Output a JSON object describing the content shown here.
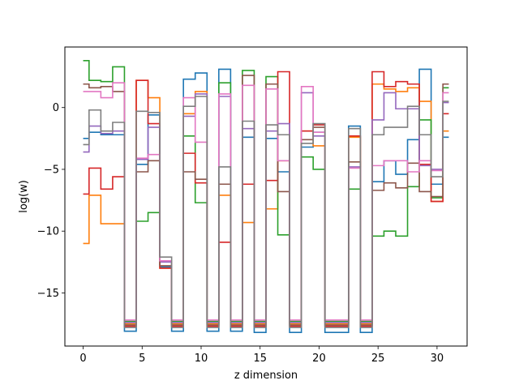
{
  "chart_data": {
    "type": "line",
    "drawstyle": "steps-mid",
    "title": "",
    "xlabel": "z dimension",
    "ylabel": "log(w)",
    "xlim": [
      -1.55,
      32.55
    ],
    "ylim": [
      -19.3,
      4.9
    ],
    "xticks": [
      0,
      5,
      10,
      15,
      20,
      25,
      30
    ],
    "yticks": [
      -15,
      -10,
      -5,
      0
    ],
    "ytick_labels": [
      "−15",
      "−10",
      "−5",
      "0"
    ],
    "grid": false,
    "legend": null,
    "x": [
      0,
      1,
      2,
      3,
      4,
      5,
      6,
      7,
      8,
      9,
      10,
      11,
      12,
      13,
      14,
      15,
      16,
      17,
      18,
      19,
      20,
      21,
      22,
      23,
      24,
      25,
      26,
      27,
      28,
      29,
      30,
      31
    ],
    "series": [
      {
        "color": "#1f77b4",
        "values": [
          -2.5,
          -2.0,
          -2.2,
          -2.2,
          -18.1,
          -4.6,
          -0.6,
          -12.9,
          -18.1,
          2.3,
          2.8,
          -18.1,
          3.1,
          -18.1,
          -2.4,
          -18.2,
          -2.5,
          -5.2,
          -18.2,
          -3.2,
          -2.0,
          -18.2,
          -18.2,
          -1.5,
          -18.2,
          -6.0,
          -4.3,
          -5.4,
          -2.6,
          3.1,
          -6.2,
          -2.4
        ]
      },
      {
        "color": "#ff7f0e",
        "values": [
          -11.0,
          -7.1,
          -9.4,
          -9.4,
          -17.5,
          2.2,
          0.8,
          -13.0,
          -17.5,
          -0.5,
          1.3,
          -17.5,
          -7.1,
          -17.5,
          -9.3,
          -17.5,
          -8.2,
          -4.3,
          -17.5,
          -1.9,
          -3.1,
          -17.5,
          -17.5,
          -2.4,
          -17.5,
          1.9,
          1.5,
          1.3,
          1.6,
          0.5,
          -7.6,
          -1.9
        ]
      },
      {
        "color": "#2ca02c",
        "values": [
          3.8,
          2.2,
          2.1,
          3.3,
          -17.3,
          -9.2,
          -8.5,
          -12.4,
          -17.3,
          -2.3,
          -7.7,
          -17.3,
          2.0,
          -17.3,
          3.0,
          -17.3,
          2.5,
          -10.3,
          -17.3,
          -4.0,
          -5.0,
          -17.3,
          -17.3,
          -6.6,
          -17.3,
          -10.4,
          -10.0,
          -10.4,
          -6.4,
          -1.0,
          -7.3,
          1.6
        ]
      },
      {
        "color": "#d62728",
        "values": [
          -7.0,
          -4.9,
          -6.6,
          -5.6,
          -17.7,
          2.2,
          -1.3,
          -13.0,
          -17.7,
          -3.7,
          -6.1,
          -17.7,
          -10.9,
          -17.7,
          -6.2,
          -17.7,
          -5.9,
          2.9,
          -17.7,
          -1.9,
          -1.4,
          -17.7,
          -17.7,
          -2.3,
          -17.7,
          2.9,
          1.7,
          2.1,
          1.9,
          -4.6,
          -7.6,
          -0.5
        ]
      },
      {
        "color": "#9467bd",
        "values": [
          -3.6,
          -1.5,
          -2.1,
          -1.9,
          -17.4,
          -4.2,
          -1.6,
          -12.5,
          -17.4,
          -0.7,
          1.1,
          -17.4,
          0.9,
          -17.4,
          -1.7,
          -17.4,
          -1.9,
          -1.3,
          -17.4,
          1.2,
          -2.3,
          -17.4,
          -17.4,
          -4.8,
          -17.4,
          -1.0,
          1.2,
          -0.1,
          -0.1,
          -4.7,
          -5.0,
          0.4
        ]
      },
      {
        "color": "#8c564b",
        "values": [
          1.9,
          1.6,
          1.7,
          1.3,
          -17.6,
          -5.2,
          -4.3,
          -12.8,
          -17.6,
          -5.2,
          -5.8,
          -17.6,
          -6.2,
          -17.6,
          2.6,
          -17.6,
          1.9,
          -6.8,
          -17.6,
          -2.6,
          -1.6,
          -17.6,
          -17.6,
          -4.4,
          -17.6,
          -6.7,
          -6.1,
          -6.5,
          -4.5,
          -6.8,
          -7.2,
          1.9
        ]
      },
      {
        "color": "#e377c2",
        "values": [
          1.3,
          1.3,
          0.8,
          2.0,
          -17.2,
          -4.1,
          -3.8,
          -12.4,
          -17.2,
          0.8,
          -2.8,
          -17.2,
          1.1,
          -17.2,
          1.8,
          -17.2,
          1.5,
          -4.3,
          -17.2,
          1.7,
          -2.0,
          -17.2,
          -17.2,
          -4.9,
          -17.2,
          -4.7,
          -4.3,
          -4.3,
          -5.2,
          -4.3,
          -5.1,
          1.2
        ]
      },
      {
        "color": "#7f7f7f",
        "values": [
          -3.0,
          -0.2,
          -1.9,
          -1.2,
          -17.8,
          -0.3,
          -0.4,
          -12.1,
          -17.8,
          0.1,
          0.9,
          -17.8,
          -4.8,
          -17.8,
          -1.1,
          -17.8,
          -1.4,
          -2.2,
          -17.8,
          -2.9,
          -1.3,
          -17.8,
          -17.8,
          -1.7,
          -17.8,
          -2.2,
          -1.6,
          -1.6,
          0.1,
          -2.2,
          -5.6,
          0.5
        ]
      }
    ]
  }
}
